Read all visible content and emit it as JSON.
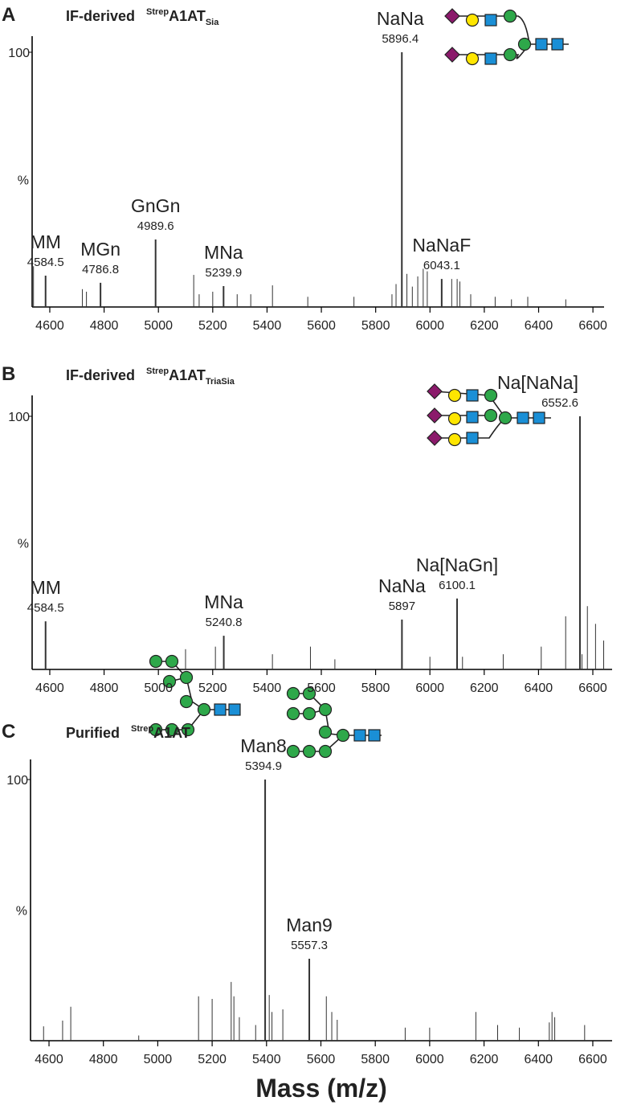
{
  "chart_data": [
    {
      "type": "spectrum",
      "panel": "A",
      "title": {
        "prefix": "IF-derived",
        "sup": "Strep",
        "main": "A1AT",
        "sub": "Sia"
      },
      "ylabel": "%",
      "ylim": [
        0,
        100
      ],
      "yticks": [
        100
      ],
      "xlim": [
        4535,
        6641
      ],
      "xticks": [
        4600,
        4800,
        5000,
        5200,
        5400,
        5600,
        5800,
        6000,
        6200,
        6400,
        6600
      ],
      "color": "#333333",
      "x": [
        4540,
        4584.5,
        4720,
        4735,
        4786.8,
        4989.6,
        5130,
        5150,
        5200,
        5239.9,
        5290,
        5340,
        5420,
        5550,
        5720,
        5860,
        5875,
        5896.4,
        5915,
        5935,
        5955,
        5975,
        5990,
        6043.1,
        6080,
        6100,
        6110,
        6150,
        6240,
        6300,
        6360,
        6500
      ],
      "values": [
        16,
        12.3,
        7,
        6,
        9.5,
        26.5,
        12.6,
        5,
        6,
        8.2,
        5,
        5,
        8.5,
        4,
        4,
        5,
        9,
        100,
        13,
        8,
        12,
        15,
        14,
        11,
        11,
        11,
        10,
        5,
        4,
        3,
        4,
        3
      ],
      "peak_labels": [
        null,
        "MM",
        null,
        null,
        "MGn",
        "GnGn",
        null,
        null,
        null,
        "MNa",
        null,
        null,
        null,
        null,
        null,
        null,
        null,
        "NaNa",
        null,
        null,
        null,
        null,
        null,
        "NaNaF",
        null,
        null,
        null,
        null,
        null,
        null,
        null,
        null
      ]
    },
    {
      "type": "spectrum",
      "panel": "B",
      "title": {
        "prefix": "IF-derived",
        "sup": "Strep",
        "main": "A1AT",
        "sub": "TriaSia"
      },
      "ylabel": "%",
      "ylim": [
        0,
        100
      ],
      "yticks": [
        100
      ],
      "xlim": [
        4535,
        6671
      ],
      "xticks": [
        4600,
        4800,
        5000,
        5200,
        5400,
        5600,
        5800,
        6000,
        6200,
        6400,
        6600
      ],
      "color": "#333333",
      "x": [
        4584.5,
        5100,
        5210,
        5240.8,
        5420,
        5560,
        5650,
        5897.0,
        6000,
        6100.1,
        6120,
        6270,
        6410,
        6500,
        6552.6,
        6560,
        6580,
        6610,
        6640
      ],
      "values": [
        19,
        8,
        9,
        13.3,
        6,
        9,
        4,
        19.7,
        5,
        28,
        5,
        6,
        9,
        21,
        100,
        6,
        25,
        18,
        11.4
      ],
      "peak_labels": [
        "MM",
        null,
        null,
        "MNa",
        null,
        null,
        null,
        "NaNa",
        null,
        "Na[NaGn]",
        null,
        null,
        null,
        null,
        "Na[NaNa]",
        null,
        null,
        null,
        null
      ]
    },
    {
      "type": "spectrum",
      "panel": "C",
      "title": {
        "prefix": "Purified",
        "sup": "Strep",
        "main": "A1AT"
      },
      "ylabel": "%",
      "ylim": [
        0,
        100
      ],
      "yticks": [
        100
      ],
      "xlim": [
        4532,
        6671
      ],
      "xticks": [
        4600,
        4800,
        5000,
        5200,
        5400,
        5600,
        5800,
        6000,
        6200,
        6400,
        6600
      ],
      "xlabel": "Mass (m/z)",
      "color": "#333333",
      "x": [
        4580,
        4650,
        4680,
        4930,
        5150,
        5200,
        5270,
        5280,
        5300,
        5360,
        5394.9,
        5410,
        5420,
        5460,
        5557.3,
        5620,
        5640,
        5660,
        5910,
        6000,
        6170,
        6250,
        6330,
        6440,
        6450,
        6460,
        6570
      ],
      "values": [
        5.5,
        7.7,
        13,
        2,
        17,
        16,
        22.5,
        17,
        9,
        6,
        100,
        17.5,
        11,
        12,
        31.4,
        17,
        11,
        8,
        5,
        5,
        11,
        6,
        5,
        7,
        11,
        9,
        6
      ],
      "peak_labels": [
        null,
        null,
        null,
        null,
        null,
        null,
        null,
        null,
        null,
        null,
        "Man8",
        null,
        null,
        null,
        "Man9",
        null,
        null,
        null,
        null,
        null,
        null,
        null,
        null,
        null,
        null,
        null,
        null
      ]
    }
  ]
}
